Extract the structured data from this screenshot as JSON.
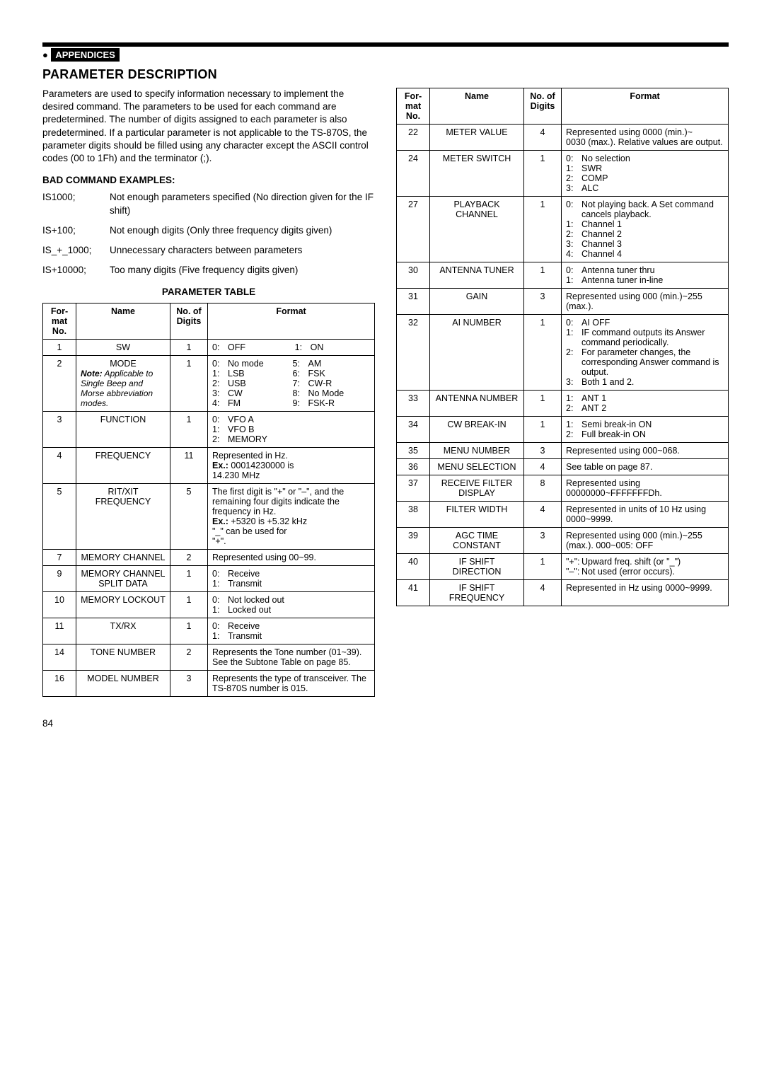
{
  "header": {
    "appendices_label": "APPENDICES",
    "section_title": "PARAMETER DESCRIPTION"
  },
  "intro": "Parameters are used to specify information necessary to implement the desired command. The parameters to be used for each command are predetermined. The number of digits assigned to each parameter is also predetermined. If a particular parameter is not applicable to the TS-870S, the parameter digits should be filled using any character except the ASCII control codes (00 to 1Fh) and the terminator (;).",
  "bad_examples_heading": "BAD COMMAND EXAMPLES:",
  "bad_examples": [
    {
      "cmd": "IS1000;",
      "desc": "Not enough parameters specified (No direction given for the IF shift)"
    },
    {
      "cmd": "IS+100;",
      "desc": "Not enough digits (Only three frequency digits given)"
    },
    {
      "cmd": "IS_+_1000;",
      "desc": "Unnecessary characters between parameters"
    },
    {
      "cmd": "IS+10000;",
      "desc": "Too many digits (Five frequency digits given)"
    }
  ],
  "table_caption": "PARAMETER TABLE",
  "table_headers": {
    "no": "For-\nmat\nNo.",
    "name": "Name",
    "digits": "No. of\nDigits",
    "format": "Format"
  },
  "left_rows": [
    {
      "no": "1",
      "name": "SW",
      "digits": "1",
      "format_pairs": [
        [
          "0:",
          "OFF"
        ],
        [
          "1:",
          "ON"
        ]
      ],
      "two_col": true
    },
    {
      "no": "2",
      "name": "MODE",
      "name_note": "Note:  Applicable to Single Beep and Morse abbreviation modes.",
      "digits": "1",
      "format_pairs": [
        [
          "0:",
          "No mode"
        ],
        [
          "5:",
          "AM"
        ],
        [
          "1:",
          "LSB"
        ],
        [
          "6:",
          "FSK"
        ],
        [
          "2:",
          "USB"
        ],
        [
          "7:",
          "CW-R"
        ],
        [
          "3:",
          "CW"
        ],
        [
          "8:",
          "No Mode"
        ],
        [
          "4:",
          "FM"
        ],
        [
          "9:",
          "FSK-R"
        ]
      ],
      "two_col": true
    },
    {
      "no": "3",
      "name": "FUNCTION",
      "digits": "1",
      "format_pairs": [
        [
          "0:",
          "VFO A"
        ],
        [
          "1:",
          "VFO B"
        ],
        [
          "2:",
          "MEMORY"
        ]
      ]
    },
    {
      "no": "4",
      "name": "FREQUENCY",
      "digits": "11",
      "format_text": "Represented in Hz.\nEx.: 00014230000 is\n        14.230 MHz"
    },
    {
      "no": "5",
      "name": "RIT/XIT FREQUENCY",
      "digits": "5",
      "format_text": "The first digit is \"+\" or \"–\", and the remaining four digits indicate the frequency in Hz.\nEx.: +5320 is +5.32 kHz\n        \"_\" can be used for\n        \"+\"."
    },
    {
      "no": "7",
      "name": "MEMORY CHANNEL",
      "digits": "2",
      "format_text": "Represented using 00~99."
    },
    {
      "no": "9",
      "name": "MEMORY CHANNEL SPLIT DATA",
      "digits": "1",
      "format_pairs": [
        [
          "0:",
          "Receive"
        ],
        [
          "1:",
          "Transmit"
        ]
      ]
    },
    {
      "no": "10",
      "name": "MEMORY LOCKOUT",
      "digits": "1",
      "format_pairs": [
        [
          "0:",
          "Not locked out"
        ],
        [
          "1:",
          "Locked out"
        ]
      ]
    },
    {
      "no": "11",
      "name": "TX/RX",
      "digits": "1",
      "format_pairs": [
        [
          "0:",
          "Receive"
        ],
        [
          "1:",
          "Transmit"
        ]
      ]
    },
    {
      "no": "14",
      "name": "TONE NUMBER",
      "digits": "2",
      "format_text": "Represents the Tone number (01~39). See the Subtone Table on page 85."
    },
    {
      "no": "16",
      "name": "MODEL NUMBER",
      "digits": "3",
      "format_text": "Represents the type of transceiver. The TS-870S number is 015."
    }
  ],
  "right_rows": [
    {
      "no": "22",
      "name": "METER VALUE",
      "digits": "4",
      "format_text": "Represented using 0000 (min.)~\n0030 (max.). Relative values are output."
    },
    {
      "no": "24",
      "name": "METER SWITCH",
      "digits": "1",
      "format_pairs": [
        [
          "0:",
          "No selection"
        ],
        [
          "1:",
          "SWR"
        ],
        [
          "2:",
          "COMP"
        ],
        [
          "3:",
          "ALC"
        ]
      ]
    },
    {
      "no": "27",
      "name": "PLAYBACK CHANNEL",
      "digits": "1",
      "format_pairs": [
        [
          "0:",
          "Not playing back. A Set command cancels playback."
        ],
        [
          "1:",
          "Channel 1"
        ],
        [
          "2:",
          "Channel 2"
        ],
        [
          "3:",
          "Channel 3"
        ],
        [
          "4:",
          "Channel 4"
        ]
      ]
    },
    {
      "no": "30",
      "name": "ANTENNA TUNER",
      "digits": "1",
      "format_pairs": [
        [
          "0:",
          "Antenna tuner thru"
        ],
        [
          "1:",
          "Antenna tuner in-line"
        ]
      ]
    },
    {
      "no": "31",
      "name": "GAIN",
      "digits": "3",
      "format_text": "Represented using 000 (min.)~255 (max.)."
    },
    {
      "no": "32",
      "name": "AI NUMBER",
      "digits": "1",
      "format_pairs": [
        [
          "0:",
          "AI OFF"
        ],
        [
          "1:",
          "IF command outputs its Answer command periodically."
        ],
        [
          "2:",
          "For parameter changes, the corresponding Answer command is output."
        ],
        [
          "3:",
          "Both 1 and 2."
        ]
      ]
    },
    {
      "no": "33",
      "name": "ANTENNA NUMBER",
      "digits": "1",
      "format_pairs": [
        [
          "1:",
          "ANT 1"
        ],
        [
          "2:",
          "ANT 2"
        ]
      ]
    },
    {
      "no": "34",
      "name": "CW BREAK-IN",
      "digits": "1",
      "format_pairs": [
        [
          "1:",
          "Semi break-in ON"
        ],
        [
          "2:",
          "Full break-in ON"
        ]
      ]
    },
    {
      "no": "35",
      "name": "MENU NUMBER",
      "digits": "3",
      "format_text": "Represented using 000~068."
    },
    {
      "no": "36",
      "name": "MENU SELECTION",
      "digits": "4",
      "format_text": "See table on page 87."
    },
    {
      "no": "37",
      "name": "RECEIVE FILTER DISPLAY",
      "digits": "8",
      "format_text": "Represented using 00000000~FFFFFFFDh."
    },
    {
      "no": "38",
      "name": "FILTER WIDTH",
      "digits": "4",
      "format_text": "Represented in units of 10 Hz using 0000~9999."
    },
    {
      "no": "39",
      "name": "AGC TIME CONSTANT",
      "digits": "3",
      "format_text": "Represented using 000 (min.)~255 (max.). 000~005:  OFF"
    },
    {
      "no": "40",
      "name": "IF SHIFT DIRECTION",
      "digits": "1",
      "format_pairs": [
        [
          "\"+\":",
          "Upward freq. shift (or \"_\")"
        ],
        [
          "\"–\":",
          "Not used (error occurs)."
        ]
      ]
    },
    {
      "no": "41",
      "name": "IF SHIFT FREQUENCY",
      "digits": "4",
      "format_text": "Represented in Hz using 0000~9999."
    }
  ],
  "page_number": "84"
}
